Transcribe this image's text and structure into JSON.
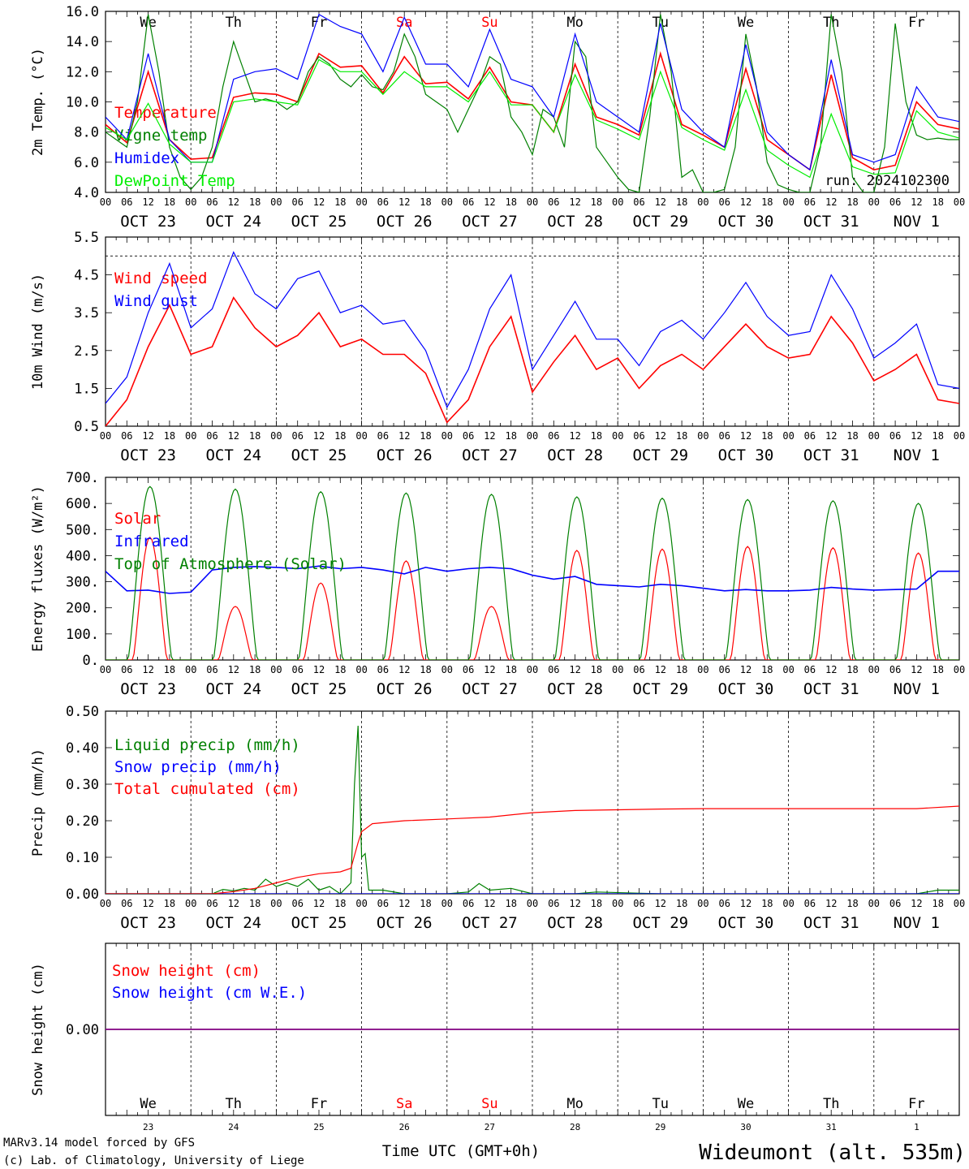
{
  "station_title": "Wideumont (alt. 535m)",
  "credits": [
    "MARv3.14 model forced by GFS",
    "(c) Lab. of Climatology, University of Liege"
  ],
  "time_axis_label": "Time UTC (GMT+0h)",
  "run_label": "run: 2024102300",
  "colors": {
    "red": "#ff0000",
    "green": "#008000",
    "blue": "#0000ff",
    "lightgreen": "#00ee00",
    "purple": "#800080",
    "weekend": "#ff0000",
    "title": "#0000ff"
  },
  "days": [
    {
      "date": "OCT 23",
      "dow": "We",
      "num": "23",
      "weekend": false
    },
    {
      "date": "OCT 24",
      "dow": "Th",
      "num": "24",
      "weekend": false
    },
    {
      "date": "OCT 25",
      "dow": "Fr",
      "num": "25",
      "weekend": false
    },
    {
      "date": "OCT 26",
      "dow": "Sa",
      "num": "26",
      "weekend": true
    },
    {
      "date": "OCT 27",
      "dow": "Su",
      "num": "27",
      "weekend": true
    },
    {
      "date": "OCT 28",
      "dow": "Mo",
      "num": "28",
      "weekend": false
    },
    {
      "date": "OCT 29",
      "dow": "Tu",
      "num": "29",
      "weekend": false
    },
    {
      "date": "OCT 30",
      "dow": "We",
      "num": "30",
      "weekend": false
    },
    {
      "date": "OCT 31",
      "dow": "Th",
      "num": "31",
      "weekend": false
    },
    {
      "date": "NOV  1",
      "dow": "Fr",
      "num": "1",
      "weekend": false
    }
  ],
  "hour_labels": [
    "00",
    "06",
    "12",
    "18"
  ],
  "chart_data": [
    {
      "type": "line",
      "ylabel": "2m Temp. (°C)",
      "ylim": [
        4.0,
        16.0
      ],
      "yticks": [
        "4.0",
        "6.0",
        "8.0",
        "10.0",
        "12.0",
        "14.0",
        "16.0"
      ],
      "xlim_hours": [
        0,
        240
      ],
      "legend_placement": "top-left",
      "series": [
        {
          "name": "Temperature",
          "color": "red",
          "x": [
            0,
            6,
            12,
            18,
            24,
            30,
            36,
            42,
            48,
            54,
            60,
            66,
            72,
            78,
            84,
            90,
            96,
            102,
            108,
            114,
            120,
            126,
            132,
            138,
            144,
            150,
            156,
            162,
            168,
            174,
            180,
            186,
            192,
            198,
            204,
            210,
            216,
            222,
            228,
            234,
            240
          ],
          "y": [
            8.5,
            7.3,
            12.0,
            7.5,
            6.2,
            6.3,
            10.3,
            10.6,
            10.5,
            10.0,
            13.2,
            12.3,
            12.4,
            10.6,
            13.0,
            11.2,
            11.3,
            10.2,
            12.3,
            10.0,
            9.8,
            8.0,
            12.5,
            9.0,
            8.5,
            7.8,
            13.2,
            8.5,
            7.8,
            7.0,
            12.2,
            7.5,
            6.5,
            5.5,
            11.8,
            6.3,
            5.5,
            5.8,
            10.0,
            8.5,
            8.2
          ]
        },
        {
          "name": "Vigne temp",
          "color": "green",
          "x": [
            0,
            3,
            6,
            9,
            12,
            15,
            18,
            21,
            24,
            27,
            30,
            33,
            36,
            39,
            42,
            45,
            48,
            51,
            54,
            57,
            60,
            63,
            66,
            69,
            72,
            75,
            78,
            81,
            84,
            87,
            90,
            93,
            96,
            99,
            102,
            105,
            108,
            111,
            114,
            117,
            120,
            123,
            126,
            129,
            132,
            135,
            138,
            141,
            144,
            147,
            150,
            153,
            156,
            159,
            162,
            165,
            168,
            171,
            174,
            177,
            180,
            183,
            186,
            189,
            192,
            195,
            198,
            201,
            204,
            207,
            210,
            213,
            216,
            219,
            222,
            225,
            228,
            231,
            234,
            237,
            240
          ],
          "y": [
            8.0,
            7.5,
            7.0,
            10.0,
            15.8,
            12.0,
            7.0,
            5.0,
            4.2,
            5.0,
            7.0,
            11.0,
            14.0,
            12.0,
            10.0,
            10.2,
            10.0,
            9.5,
            10.0,
            12.0,
            13.0,
            12.5,
            11.5,
            11.0,
            11.8,
            11.0,
            10.8,
            12.0,
            14.5,
            13.0,
            10.5,
            10.0,
            9.5,
            8.0,
            9.5,
            11.0,
            13.0,
            12.5,
            9.0,
            8.0,
            6.5,
            9.5,
            9.0,
            7.0,
            14.0,
            13.0,
            7.0,
            6.0,
            5.0,
            4.2,
            4.0,
            9.0,
            15.8,
            12.0,
            5.0,
            5.5,
            4.0,
            4.0,
            4.2,
            7.0,
            14.5,
            11.0,
            6.0,
            4.5,
            4.2,
            4.0,
            4.0,
            7.0,
            15.8,
            12.0,
            5.0,
            4.0,
            4.0,
            7.0,
            15.2,
            10.0,
            7.8,
            7.5,
            7.6,
            7.5,
            7.5
          ]
        },
        {
          "name": "Humidex",
          "color": "blue",
          "x": [
            0,
            6,
            12,
            18,
            24,
            30,
            36,
            42,
            48,
            54,
            60,
            66,
            72,
            78,
            84,
            90,
            96,
            102,
            108,
            114,
            120,
            126,
            132,
            138,
            144,
            150,
            156,
            162,
            168,
            174,
            180,
            186,
            192,
            198,
            204,
            210,
            216,
            222,
            228,
            234,
            240
          ],
          "y": [
            9.0,
            7.5,
            13.2,
            7.5,
            6.0,
            6.0,
            11.5,
            12.0,
            12.2,
            11.5,
            15.8,
            15.0,
            14.5,
            12.0,
            15.6,
            12.5,
            12.5,
            11.0,
            14.8,
            11.5,
            11.0,
            9.0,
            14.5,
            10.0,
            9.0,
            8.0,
            15.2,
            9.5,
            8.0,
            7.0,
            13.8,
            8.0,
            6.5,
            5.5,
            12.8,
            6.5,
            6.0,
            6.5,
            11.0,
            9.0,
            8.7
          ]
        },
        {
          "name": "DewPoint Temp",
          "color": "lightgreen",
          "x": [
            0,
            6,
            12,
            18,
            24,
            30,
            36,
            42,
            48,
            54,
            60,
            66,
            72,
            78,
            84,
            90,
            96,
            102,
            108,
            114,
            120,
            126,
            132,
            138,
            144,
            150,
            156,
            162,
            168,
            174,
            180,
            186,
            192,
            198,
            204,
            210,
            216,
            222,
            228,
            234,
            240
          ],
          "y": [
            8.3,
            7.5,
            9.9,
            7.2,
            6.0,
            6.0,
            10.0,
            10.2,
            10.0,
            9.8,
            12.8,
            12.0,
            12.0,
            10.5,
            12.0,
            11.0,
            11.0,
            10.0,
            12.0,
            9.8,
            9.8,
            8.0,
            11.8,
            8.8,
            8.2,
            7.5,
            12.0,
            8.3,
            7.5,
            6.8,
            10.8,
            6.8,
            5.8,
            5.0,
            9.2,
            5.7,
            5.2,
            5.3,
            9.4,
            8.0,
            7.6
          ]
        }
      ]
    },
    {
      "type": "line",
      "ylabel": "10m Wind (m/s)",
      "ylim": [
        0.5,
        5.5
      ],
      "yticks": [
        "0.5",
        "1.5",
        "2.5",
        "3.5",
        "4.5",
        "5.5"
      ],
      "reference_line": 5.0,
      "legend_placement": "top-left",
      "series": [
        {
          "name": "Wind speed",
          "color": "red",
          "x": [
            0,
            6,
            12,
            18,
            24,
            30,
            36,
            42,
            48,
            54,
            60,
            66,
            72,
            78,
            84,
            90,
            96,
            102,
            108,
            114,
            120,
            126,
            132,
            138,
            144,
            150,
            156,
            162,
            168,
            174,
            180,
            186,
            192,
            198,
            204,
            210,
            216,
            222,
            228,
            234,
            240
          ],
          "y": [
            0.5,
            1.2,
            2.6,
            3.7,
            2.4,
            2.6,
            3.9,
            3.1,
            2.6,
            2.9,
            3.5,
            2.6,
            2.8,
            2.4,
            2.4,
            1.9,
            0.6,
            1.2,
            2.6,
            3.4,
            1.4,
            2.2,
            2.9,
            2.0,
            2.3,
            1.5,
            2.1,
            2.4,
            2.0,
            2.6,
            3.2,
            2.6,
            2.3,
            2.4,
            3.4,
            2.7,
            1.7,
            2.0,
            2.4,
            1.2,
            1.1
          ]
        },
        {
          "name": "Wind gust",
          "color": "blue",
          "x": [
            0,
            6,
            12,
            18,
            24,
            30,
            36,
            42,
            48,
            54,
            60,
            66,
            72,
            78,
            84,
            90,
            96,
            102,
            108,
            114,
            120,
            126,
            132,
            138,
            144,
            150,
            156,
            162,
            168,
            174,
            180,
            186,
            192,
            198,
            204,
            210,
            216,
            222,
            228,
            234,
            240
          ],
          "y": [
            1.1,
            1.8,
            3.5,
            4.8,
            3.1,
            3.6,
            5.1,
            4.0,
            3.6,
            4.4,
            4.6,
            3.5,
            3.7,
            3.2,
            3.3,
            2.5,
            1.0,
            2.0,
            3.6,
            4.5,
            2.0,
            2.9,
            3.8,
            2.8,
            2.8,
            2.1,
            3.0,
            3.3,
            2.8,
            3.5,
            4.3,
            3.4,
            2.9,
            3.0,
            4.5,
            3.6,
            2.3,
            2.7,
            3.2,
            1.6,
            1.5
          ]
        }
      ]
    },
    {
      "type": "line",
      "ylabel": "Energy fluxes (W/m²)",
      "ylim": [
        0,
        700
      ],
      "yticks": [
        "0.",
        "100.",
        "200.",
        "300.",
        "400.",
        "500.",
        "600.",
        "700."
      ],
      "legend_placement": "top-left",
      "series": [
        {
          "name": "Solar",
          "color": "red",
          "peak_hour": 12.5,
          "peaks": [
            470,
            205,
            295,
            380,
            205,
            420,
            425,
            435,
            430,
            410
          ]
        },
        {
          "name": "Infrared",
          "color": "blue",
          "x": [
            0,
            6,
            12,
            18,
            24,
            30,
            36,
            42,
            48,
            54,
            60,
            66,
            72,
            78,
            84,
            90,
            96,
            102,
            108,
            114,
            120,
            126,
            132,
            138,
            144,
            150,
            156,
            162,
            168,
            174,
            180,
            186,
            192,
            198,
            204,
            210,
            216,
            222,
            228,
            234,
            240
          ],
          "y": [
            340,
            265,
            268,
            255,
            260,
            345,
            355,
            358,
            355,
            350,
            360,
            350,
            355,
            345,
            330,
            355,
            340,
            350,
            355,
            350,
            325,
            310,
            320,
            290,
            285,
            280,
            290,
            285,
            275,
            265,
            270,
            265,
            265,
            268,
            278,
            272,
            268,
            270,
            272,
            340,
            340
          ]
        },
        {
          "name": "Top of Atmosphere (Solar)",
          "color": "green",
          "peak_hour": 12.5,
          "peaks": [
            665,
            655,
            645,
            640,
            635,
            625,
            620,
            615,
            610,
            600
          ]
        }
      ]
    },
    {
      "type": "line",
      "ylabel": "Precip (mm/h)",
      "ylim": [
        0,
        0.5
      ],
      "yticks": [
        "0.00",
        "0.10",
        "0.20",
        "0.30",
        "0.40",
        "0.50"
      ],
      "legend_placement": "top-left",
      "series": [
        {
          "name": "Liquid precip (mm/h)",
          "color": "green",
          "x": [
            0,
            30,
            33,
            36,
            39,
            42,
            45,
            48,
            51,
            54,
            57,
            60,
            63,
            66,
            69,
            70,
            71,
            72,
            73,
            74,
            75,
            78,
            84,
            96,
            102,
            105,
            108,
            114,
            120,
            132,
            138,
            156,
            180,
            228,
            234,
            240
          ],
          "y": [
            0,
            0,
            0.012,
            0.008,
            0.015,
            0.01,
            0.04,
            0.02,
            0.03,
            0.02,
            0.04,
            0.01,
            0.02,
            0.0,
            0.03,
            0.3,
            0.46,
            0.1,
            0.11,
            0.01,
            0.01,
            0.01,
            0.0,
            0.0,
            0.005,
            0.028,
            0.01,
            0.015,
            0.0,
            0.0,
            0.005,
            0.0,
            0.0,
            0.0,
            0.01,
            0.01
          ]
        },
        {
          "name": "Snow precip (mm/h)",
          "color": "blue",
          "x": [
            0,
            240
          ],
          "y": [
            0,
            0
          ]
        },
        {
          "name": "Total cumulated (cm)",
          "color": "red",
          "x": [
            0,
            30,
            36,
            42,
            48,
            54,
            60,
            66,
            69,
            71,
            72,
            75,
            84,
            96,
            108,
            120,
            132,
            144,
            156,
            168,
            180,
            192,
            204,
            216,
            228,
            240
          ],
          "y": [
            0,
            0,
            0.006,
            0.015,
            0.03,
            0.045,
            0.055,
            0.06,
            0.07,
            0.14,
            0.17,
            0.192,
            0.2,
            0.205,
            0.21,
            0.222,
            0.228,
            0.23,
            0.232,
            0.233,
            0.233,
            0.233,
            0.233,
            0.233,
            0.233,
            0.24
          ]
        }
      ]
    },
    {
      "type": "line",
      "ylabel": "Snow height (cm)",
      "ylim": [
        -0.5,
        0.5
      ],
      "yticks": [
        "0.00"
      ],
      "legend_placement": "top-left",
      "series": [
        {
          "name": "Snow height (cm)",
          "color": "red",
          "x": [
            0,
            240
          ],
          "y": [
            0,
            0
          ]
        },
        {
          "name": "Snow height (cm W.E.)",
          "color": "blue",
          "x": [
            0,
            240
          ],
          "y": [
            0,
            0
          ]
        }
      ]
    }
  ]
}
